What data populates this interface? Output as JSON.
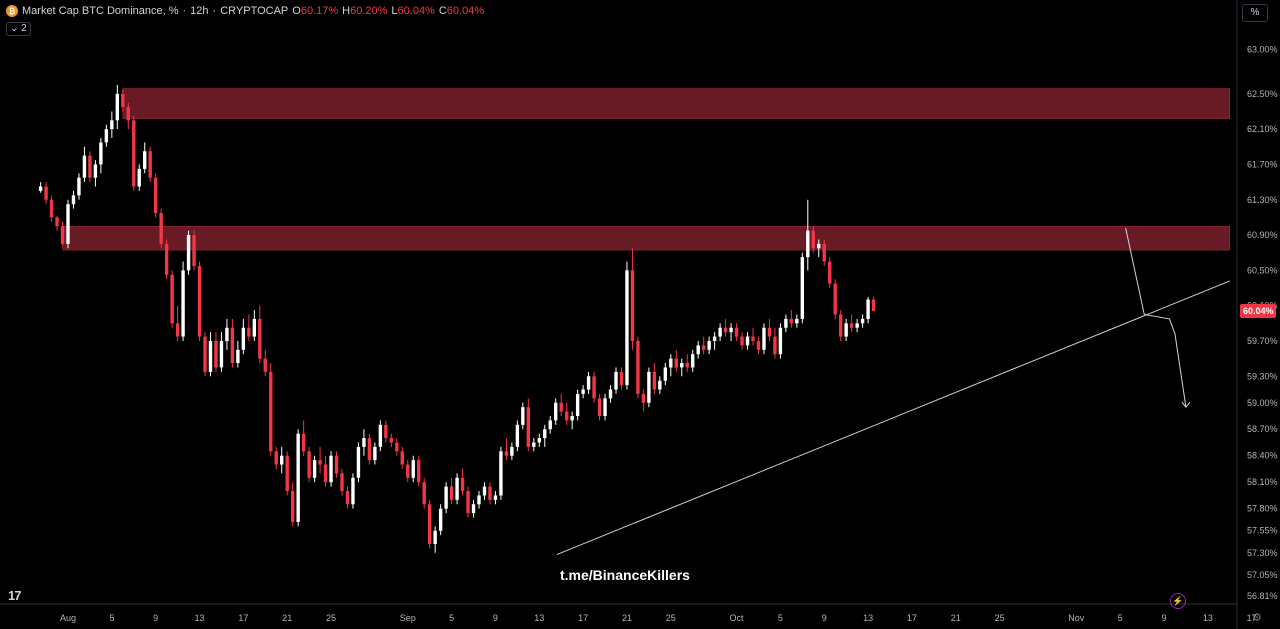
{
  "header": {
    "symbol_label": "Market Cap BTC Dominance, %",
    "interval": "12h",
    "exchange": "CRYPTOCAP",
    "o_label": "O",
    "o_value": "60.17%",
    "h_label": "H",
    "h_value": "60.20%",
    "l_label": "L",
    "l_value": "60.04%",
    "c_label": "C",
    "c_value": "60.04%",
    "logo_char": "₿",
    "sep1": "·",
    "sep2": "·"
  },
  "indicators_toggle": "⌄ 2",
  "unit_button": "%",
  "watermark": "t.me/BinanceKillers",
  "settings_icon": "⚙",
  "bolt_icon": "⚡",
  "tv_logo": "17",
  "colors": {
    "up": "#ffffff",
    "down": "#f23645",
    "zone": "#7a1f2b",
    "axis_text": "#b2b5be",
    "price_tag": "#f23645"
  },
  "chart_data": {
    "type": "candlestick",
    "y_axis": {
      "min": 56.7,
      "max": 63.3,
      "ticks": [
        63.0,
        62.5,
        62.1,
        61.7,
        61.3,
        60.9,
        60.5,
        60.1,
        59.7,
        59.3,
        59.0,
        58.7,
        58.4,
        58.1,
        57.8,
        57.55,
        57.3,
        57.05,
        56.81
      ],
      "tick_labels": [
        "63.00%",
        "62.50%",
        "62.10%",
        "61.70%",
        "61.30%",
        "60.90%",
        "60.50%",
        "60.10%",
        "59.70%",
        "59.30%",
        "59.00%",
        "58.70%",
        "58.40%",
        "58.10%",
        "57.80%",
        "57.55%",
        "57.30%",
        "57.05%",
        "56.81%"
      ]
    },
    "x_axis": {
      "day_min": -2,
      "day_max": 107,
      "ticks": [
        {
          "day": 1,
          "label": "Aug"
        },
        {
          "day": 5,
          "label": "5"
        },
        {
          "day": 9,
          "label": "9"
        },
        {
          "day": 13,
          "label": "13"
        },
        {
          "day": 17,
          "label": "17"
        },
        {
          "day": 21,
          "label": "21"
        },
        {
          "day": 25,
          "label": "25"
        },
        {
          "day": 32,
          "label": "Sep"
        },
        {
          "day": 36,
          "label": "5"
        },
        {
          "day": 40,
          "label": "9"
        },
        {
          "day": 44,
          "label": "13"
        },
        {
          "day": 48,
          "label": "17"
        },
        {
          "day": 52,
          "label": "21"
        },
        {
          "day": 56,
          "label": "25"
        },
        {
          "day": 62,
          "label": "Oct"
        },
        {
          "day": 66,
          "label": "5"
        },
        {
          "day": 70,
          "label": "9"
        },
        {
          "day": 74,
          "label": "13"
        },
        {
          "day": 78,
          "label": "17"
        },
        {
          "day": 82,
          "label": "21"
        },
        {
          "day": 86,
          "label": "25"
        },
        {
          "day": 93,
          "label": "Nov"
        },
        {
          "day": 97,
          "label": "5"
        },
        {
          "day": 101,
          "label": "9"
        },
        {
          "day": 105,
          "label": "13"
        },
        {
          "day": 109,
          "label": "17"
        }
      ]
    },
    "last_price_label": "60.04%",
    "last_price": 60.04,
    "zones": [
      {
        "from_day": 6,
        "to_day": 107,
        "low": 62.22,
        "high": 62.56
      },
      {
        "from_day": 0.5,
        "to_day": 107,
        "low": 60.73,
        "high": 61.0
      }
    ],
    "trendline": {
      "start_day": 45.6,
      "start_value": 57.28,
      "end_day": 107,
      "end_value": 60.38
    },
    "projection_path": [
      [
        97.5,
        60.98
      ],
      [
        99.2,
        60.0
      ],
      [
        101.5,
        59.95
      ],
      [
        102.0,
        59.78
      ],
      [
        103.0,
        58.95
      ]
    ],
    "candles_first_day": -1.5,
    "candles_step_days": 0.5,
    "candles": [
      [
        61.4,
        61.5,
        61.38,
        61.45
      ],
      [
        61.45,
        61.5,
        61.25,
        61.3
      ],
      [
        61.3,
        61.35,
        61.05,
        61.1
      ],
      [
        61.1,
        61.12,
        60.95,
        61.0
      ],
      [
        61.0,
        61.05,
        60.78,
        60.8
      ],
      [
        60.8,
        61.3,
        60.75,
        61.25
      ],
      [
        61.25,
        61.4,
        61.2,
        61.35
      ],
      [
        61.35,
        61.6,
        61.3,
        61.55
      ],
      [
        61.55,
        61.9,
        61.5,
        61.8
      ],
      [
        61.8,
        61.85,
        61.5,
        61.55
      ],
      [
        61.55,
        61.75,
        61.45,
        61.7
      ],
      [
        61.7,
        62.0,
        61.6,
        61.95
      ],
      [
        61.95,
        62.15,
        61.9,
        62.1
      ],
      [
        62.1,
        62.3,
        62.0,
        62.2
      ],
      [
        62.2,
        62.6,
        62.1,
        62.5
      ],
      [
        62.5,
        62.55,
        62.3,
        62.35
      ],
      [
        62.35,
        62.4,
        62.1,
        62.2
      ],
      [
        62.2,
        62.25,
        61.4,
        61.45
      ],
      [
        61.45,
        61.7,
        61.4,
        61.65
      ],
      [
        61.65,
        61.95,
        61.6,
        61.85
      ],
      [
        61.85,
        61.9,
        61.5,
        61.55
      ],
      [
        61.55,
        61.6,
        61.1,
        61.15
      ],
      [
        61.15,
        61.2,
        60.75,
        60.8
      ],
      [
        60.8,
        60.85,
        60.4,
        60.45
      ],
      [
        60.45,
        60.5,
        59.85,
        59.9
      ],
      [
        59.9,
        60.1,
        59.7,
        59.75
      ],
      [
        59.75,
        60.6,
        59.7,
        60.5
      ],
      [
        60.5,
        60.95,
        60.45,
        60.9
      ],
      [
        60.9,
        60.95,
        60.5,
        60.55
      ],
      [
        60.55,
        60.6,
        59.7,
        59.75
      ],
      [
        59.75,
        59.8,
        59.3,
        59.35
      ],
      [
        59.35,
        59.8,
        59.3,
        59.7
      ],
      [
        59.7,
        59.8,
        59.35,
        59.4
      ],
      [
        59.4,
        59.8,
        59.35,
        59.7
      ],
      [
        59.7,
        59.95,
        59.6,
        59.85
      ],
      [
        59.85,
        59.95,
        59.4,
        59.45
      ],
      [
        59.45,
        59.7,
        59.4,
        59.6
      ],
      [
        59.6,
        59.95,
        59.55,
        59.85
      ],
      [
        59.85,
        60.0,
        59.7,
        59.75
      ],
      [
        59.75,
        60.05,
        59.7,
        59.95
      ],
      [
        59.95,
        60.1,
        59.45,
        59.5
      ],
      [
        59.5,
        59.6,
        59.3,
        59.35
      ],
      [
        59.35,
        59.45,
        58.4,
        58.45
      ],
      [
        58.45,
        58.5,
        58.25,
        58.3
      ],
      [
        58.3,
        58.5,
        58.2,
        58.4
      ],
      [
        58.4,
        58.45,
        57.95,
        58.0
      ],
      [
        58.0,
        58.1,
        57.6,
        57.65
      ],
      [
        57.65,
        58.7,
        57.6,
        58.65
      ],
      [
        58.65,
        58.8,
        58.4,
        58.45
      ],
      [
        58.45,
        58.5,
        58.1,
        58.15
      ],
      [
        58.15,
        58.4,
        58.1,
        58.35
      ],
      [
        58.35,
        58.5,
        58.2,
        58.3
      ],
      [
        58.3,
        58.4,
        58.05,
        58.1
      ],
      [
        58.1,
        58.45,
        58.05,
        58.4
      ],
      [
        58.4,
        58.45,
        58.15,
        58.2
      ],
      [
        58.2,
        58.25,
        57.95,
        58.0
      ],
      [
        58.0,
        58.05,
        57.8,
        57.85
      ],
      [
        57.85,
        58.2,
        57.8,
        58.15
      ],
      [
        58.15,
        58.55,
        58.1,
        58.5
      ],
      [
        58.5,
        58.7,
        58.4,
        58.6
      ],
      [
        58.6,
        58.65,
        58.3,
        58.35
      ],
      [
        58.35,
        58.55,
        58.3,
        58.5
      ],
      [
        58.5,
        58.8,
        58.45,
        58.75
      ],
      [
        58.75,
        58.8,
        58.55,
        58.6
      ],
      [
        58.6,
        58.65,
        58.5,
        58.55
      ],
      [
        58.55,
        58.6,
        58.4,
        58.45
      ],
      [
        58.45,
        58.5,
        58.25,
        58.3
      ],
      [
        58.3,
        58.35,
        58.1,
        58.15
      ],
      [
        58.15,
        58.4,
        58.1,
        58.35
      ],
      [
        58.35,
        58.4,
        58.05,
        58.1
      ],
      [
        58.1,
        58.15,
        57.8,
        57.85
      ],
      [
        57.85,
        57.9,
        57.35,
        57.4
      ],
      [
        57.4,
        57.6,
        57.3,
        57.55
      ],
      [
        57.55,
        57.85,
        57.5,
        57.8
      ],
      [
        57.8,
        58.1,
        57.75,
        58.05
      ],
      [
        58.05,
        58.15,
        57.85,
        57.9
      ],
      [
        57.9,
        58.2,
        57.85,
        58.15
      ],
      [
        58.15,
        58.25,
        57.95,
        58.0
      ],
      [
        58.0,
        58.05,
        57.7,
        57.75
      ],
      [
        57.75,
        57.9,
        57.7,
        57.85
      ],
      [
        57.85,
        58.0,
        57.8,
        57.95
      ],
      [
        57.95,
        58.1,
        57.9,
        58.05
      ],
      [
        58.05,
        58.1,
        57.85,
        57.9
      ],
      [
        57.9,
        58.0,
        57.85,
        57.95
      ],
      [
        57.95,
        58.5,
        57.9,
        58.45
      ],
      [
        58.45,
        58.6,
        58.35,
        58.4
      ],
      [
        58.4,
        58.55,
        58.35,
        58.5
      ],
      [
        58.5,
        58.8,
        58.45,
        58.75
      ],
      [
        58.75,
        59.0,
        58.7,
        58.95
      ],
      [
        58.95,
        59.05,
        58.45,
        58.5
      ],
      [
        58.5,
        58.6,
        58.45,
        58.55
      ],
      [
        58.55,
        58.65,
        58.5,
        58.6
      ],
      [
        58.6,
        58.75,
        58.5,
        58.7
      ],
      [
        58.7,
        58.85,
        58.65,
        58.8
      ],
      [
        58.8,
        59.05,
        58.75,
        59.0
      ],
      [
        59.0,
        59.1,
        58.85,
        58.9
      ],
      [
        58.9,
        59.0,
        58.75,
        58.8
      ],
      [
        58.8,
        58.9,
        58.7,
        58.85
      ],
      [
        58.85,
        59.15,
        58.8,
        59.1
      ],
      [
        59.1,
        59.2,
        59.05,
        59.15
      ],
      [
        59.15,
        59.35,
        59.1,
        59.3
      ],
      [
        59.3,
        59.35,
        59.0,
        59.05
      ],
      [
        59.05,
        59.1,
        58.8,
        58.85
      ],
      [
        58.85,
        59.1,
        58.8,
        59.05
      ],
      [
        59.05,
        59.2,
        59.0,
        59.15
      ],
      [
        59.15,
        59.4,
        59.1,
        59.35
      ],
      [
        59.35,
        59.4,
        59.15,
        59.2
      ],
      [
        59.2,
        60.6,
        59.15,
        60.5
      ],
      [
        60.5,
        60.75,
        59.6,
        59.7
      ],
      [
        59.7,
        59.75,
        59.05,
        59.1
      ],
      [
        59.1,
        59.15,
        58.9,
        59.0
      ],
      [
        59.0,
        59.4,
        58.95,
        59.35
      ],
      [
        59.35,
        59.45,
        59.1,
        59.15
      ],
      [
        59.15,
        59.3,
        59.1,
        59.25
      ],
      [
        59.25,
        59.45,
        59.2,
        59.4
      ],
      [
        59.4,
        59.55,
        59.3,
        59.5
      ],
      [
        59.5,
        59.6,
        59.35,
        59.4
      ],
      [
        59.4,
        59.5,
        59.3,
        59.45
      ],
      [
        59.45,
        59.55,
        59.35,
        59.4
      ],
      [
        59.4,
        59.6,
        59.35,
        59.55
      ],
      [
        59.55,
        59.7,
        59.5,
        59.65
      ],
      [
        59.65,
        59.75,
        59.55,
        59.6
      ],
      [
        59.6,
        59.75,
        59.55,
        59.7
      ],
      [
        59.7,
        59.8,
        59.6,
        59.75
      ],
      [
        59.75,
        59.9,
        59.7,
        59.85
      ],
      [
        59.85,
        59.95,
        59.75,
        59.8
      ],
      [
        59.8,
        59.9,
        59.7,
        59.85
      ],
      [
        59.85,
        59.9,
        59.7,
        59.75
      ],
      [
        59.75,
        59.8,
        59.6,
        59.65
      ],
      [
        59.65,
        59.8,
        59.6,
        59.75
      ],
      [
        59.75,
        59.85,
        59.65,
        59.7
      ],
      [
        59.7,
        59.75,
        59.55,
        59.6
      ],
      [
        59.6,
        59.9,
        59.55,
        59.85
      ],
      [
        59.85,
        59.95,
        59.7,
        59.75
      ],
      [
        59.75,
        59.85,
        59.5,
        59.55
      ],
      [
        59.55,
        59.9,
        59.5,
        59.85
      ],
      [
        59.85,
        60.0,
        59.8,
        59.95
      ],
      [
        59.95,
        60.05,
        59.85,
        59.9
      ],
      [
        59.9,
        60.0,
        59.85,
        59.95
      ],
      [
        59.95,
        60.7,
        59.9,
        60.65
      ],
      [
        60.65,
        61.3,
        60.5,
        60.95
      ],
      [
        60.95,
        61.0,
        60.7,
        60.75
      ],
      [
        60.75,
        60.85,
        60.65,
        60.8
      ],
      [
        60.8,
        60.85,
        60.55,
        60.6
      ],
      [
        60.6,
        60.65,
        60.3,
        60.35
      ],
      [
        60.35,
        60.4,
        59.95,
        60.0
      ],
      [
        60.0,
        60.05,
        59.7,
        59.75
      ],
      [
        59.75,
        59.95,
        59.7,
        59.9
      ],
      [
        59.9,
        60.0,
        59.8,
        59.85
      ],
      [
        59.85,
        59.95,
        59.8,
        59.9
      ],
      [
        59.9,
        60.0,
        59.85,
        59.95
      ],
      [
        59.95,
        60.2,
        59.9,
        60.17
      ],
      [
        60.17,
        60.2,
        60.04,
        60.04
      ]
    ]
  }
}
